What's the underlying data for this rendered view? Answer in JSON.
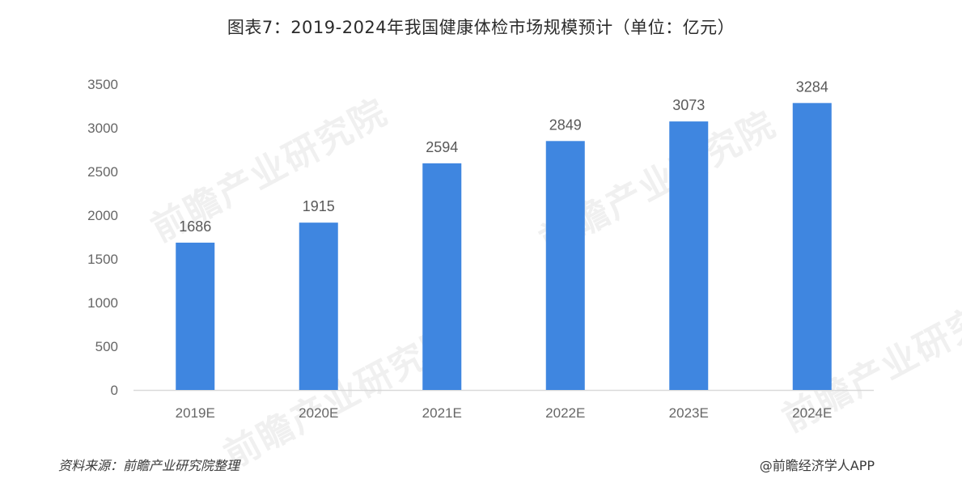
{
  "title": "图表7：2019-2024年我国健康体检市场规模预计（单位：亿元）",
  "source": "资料来源：前瞻产业研究院整理",
  "credit": "@前瞻经济学人APP",
  "watermark": "前瞻产业研究院",
  "colors": {
    "bar": "#3f86e0",
    "axis": "#d9d9d9"
  },
  "chart_data": {
    "type": "bar",
    "categories": [
      "2019E",
      "2020E",
      "2021E",
      "2022E",
      "2023E",
      "2024E"
    ],
    "values": [
      1686,
      1915,
      2594,
      2849,
      3073,
      3284
    ],
    "ylim": [
      0,
      3500
    ],
    "yticks": [
      0,
      500,
      1000,
      1500,
      2000,
      2500,
      3000,
      3500
    ],
    "grid": false,
    "title": "图表7：2019-2024年我国健康体检市场规模预计（单位：亿元）",
    "xlabel": "",
    "ylabel": ""
  }
}
